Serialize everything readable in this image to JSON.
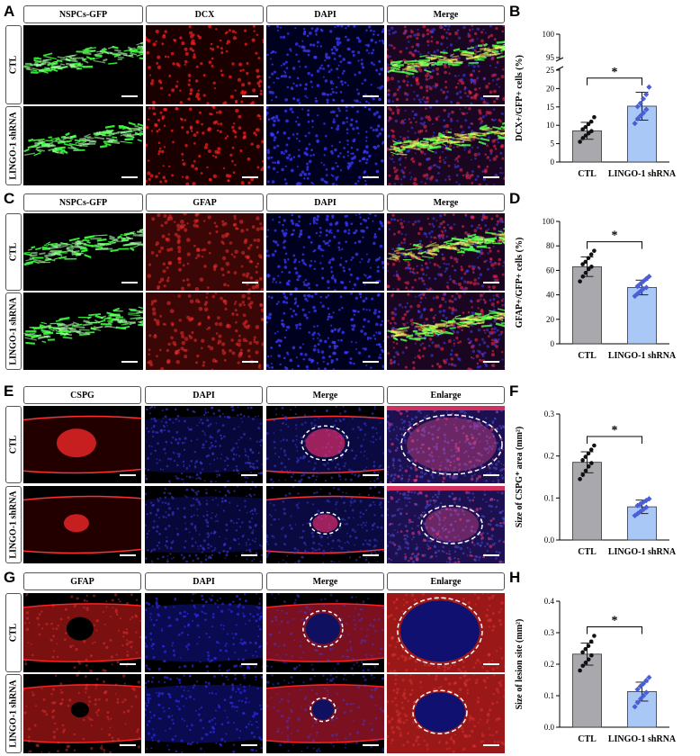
{
  "panels": {
    "A": {
      "letter": "A",
      "cols": [
        "NSPCs-GFP",
        "DCX",
        "DAPI",
        "Merge"
      ],
      "rows": [
        "CTL",
        "LINGO-1 shRNA"
      ]
    },
    "B": {
      "letter": "B"
    },
    "C": {
      "letter": "C",
      "cols": [
        "NSPCs-GFP",
        "GFAP",
        "DAPI",
        "Merge"
      ],
      "rows": [
        "CTL",
        "LINGO-1 shRNA"
      ]
    },
    "D": {
      "letter": "D"
    },
    "E": {
      "letter": "E",
      "cols": [
        "CSPG",
        "DAPI",
        "Merge",
        "Enlarge"
      ],
      "rows": [
        "CTL",
        "LINGO-1 shRNA"
      ]
    },
    "F": {
      "letter": "F"
    },
    "G": {
      "letter": "G",
      "cols": [
        "GFAP",
        "DAPI",
        "Merge",
        "Enlarge"
      ],
      "rows": [
        "CTL",
        "LINGO-1 shRNA"
      ]
    },
    "H": {
      "letter": "H"
    }
  },
  "colors": {
    "ctl_bar": "#a8a8ad",
    "shrna_bar": "#a9c8f5",
    "ctl_dot": "#111111",
    "shrna_dot": "#4a5fd6"
  },
  "chart_data": [
    {
      "id": "B",
      "type": "bar",
      "categories": [
        "CTL",
        "LINGO-1 shRNA"
      ],
      "ylabel": "DCX+/GFP+ cells (%)",
      "axis_break": true,
      "yticks_lower": [
        0,
        5,
        10,
        15,
        20,
        25
      ],
      "yticks_upper": [
        95,
        100
      ],
      "ylim_lower": [
        0,
        25
      ],
      "ylim_upper": [
        95,
        100
      ],
      "values": [
        8.5,
        15.2
      ],
      "errors": [
        2.3,
        3.8
      ],
      "significance": "*",
      "points": [
        [
          5.5,
          6.5,
          7.2,
          7.8,
          8.4,
          8.9,
          9.5,
          10.3,
          11.0,
          12.2
        ],
        [
          10.5,
          11.8,
          12.6,
          13.4,
          14.3,
          15.1,
          16.0,
          17.2,
          18.4,
          20.4
        ]
      ]
    },
    {
      "id": "D",
      "type": "bar",
      "categories": [
        "CTL",
        "LINGO-1 shRNA"
      ],
      "ylabel": "GFAP+/GFP+ cells (%)",
      "ylim": [
        0,
        100
      ],
      "yticks": [
        0,
        20,
        40,
        60,
        80,
        100
      ],
      "values": [
        63,
        46
      ],
      "errors": [
        8,
        6
      ],
      "significance": "*",
      "points": [
        [
          51,
          55,
          58,
          61,
          63,
          65,
          67,
          70,
          73,
          76
        ],
        [
          39,
          41,
          43,
          45,
          46,
          47,
          49,
          51,
          53,
          55
        ]
      ]
    },
    {
      "id": "F",
      "type": "bar",
      "categories": [
        "CTL",
        "LINGO-1 shRNA"
      ],
      "ylabel": "Size of CSPG⁺ area (mm²)",
      "ylim": [
        0,
        0.3
      ],
      "yticks": [
        0.0,
        0.1,
        0.2,
        0.3
      ],
      "values": [
        0.185,
        0.079
      ],
      "errors": [
        0.025,
        0.016
      ],
      "significance": "*",
      "points": [
        [
          0.145,
          0.155,
          0.165,
          0.175,
          0.183,
          0.19,
          0.198,
          0.206,
          0.215,
          0.225
        ],
        [
          0.058,
          0.063,
          0.068,
          0.073,
          0.078,
          0.082,
          0.086,
          0.09,
          0.094,
          0.098
        ]
      ]
    },
    {
      "id": "H",
      "type": "bar",
      "categories": [
        "CTL",
        "LINGO-1 shRNA"
      ],
      "ylabel": "Size of lesion site (mm²)",
      "ylim": [
        0,
        0.4
      ],
      "yticks": [
        0.0,
        0.1,
        0.2,
        0.3,
        0.4
      ],
      "values": [
        0.232,
        0.113
      ],
      "errors": [
        0.035,
        0.03
      ],
      "significance": "*",
      "points": [
        [
          0.18,
          0.195,
          0.205,
          0.215,
          0.228,
          0.238,
          0.248,
          0.258,
          0.272,
          0.29
        ],
        [
          0.065,
          0.078,
          0.09,
          0.1,
          0.11,
          0.12,
          0.13,
          0.138,
          0.148,
          0.158
        ]
      ]
    }
  ]
}
